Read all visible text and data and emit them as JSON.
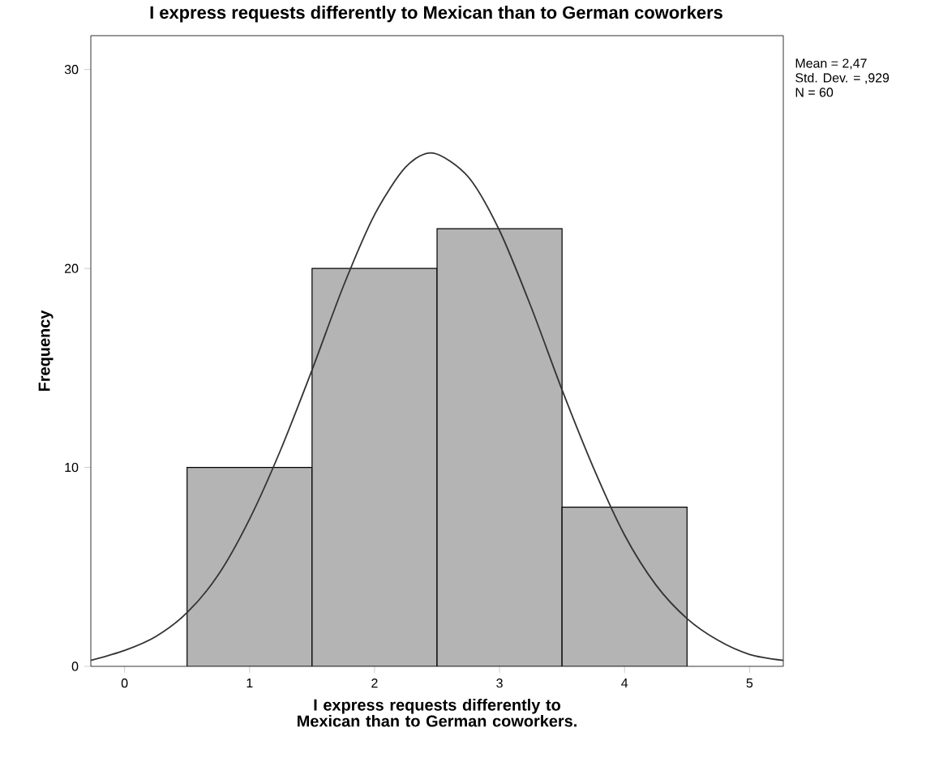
{
  "chart_data": {
    "type": "histogram",
    "title": "I express requests differently to Mexican than to German coworkers",
    "xlabel": "I express requests differently to Mexican than to German coworkers.",
    "ylabel": "Frequency",
    "bins": [
      0.5,
      1.5,
      2.5,
      3.5,
      4.5
    ],
    "series": [
      {
        "color": "#b4b4b4",
        "values": [
          10,
          20,
          22,
          8
        ]
      },
      {
        "type": "line",
        "color": "#333333",
        "x": [
          -0.27,
          0,
          0.25,
          0.5,
          0.75,
          1,
          1.25,
          1.5,
          1.75,
          2,
          2.25,
          2.47,
          2.75,
          3,
          3.25,
          3.5,
          3.75,
          4,
          4.25,
          4.5,
          4.75,
          5,
          5.27
        ],
        "values": [
          0.3,
          0.8,
          1.5,
          2.7,
          4.6,
          7.4,
          10.9,
          14.9,
          19.1,
          22.7,
          25.1,
          25.8,
          24.6,
          21.9,
          18.1,
          13.9,
          10.0,
          6.6,
          4.1,
          2.4,
          1.3,
          0.6,
          0.3
        ]
      }
    ],
    "xlim": [
      -0.27,
      5.27
    ],
    "ylim": [
      0,
      31.7
    ],
    "xticks": [
      0,
      1,
      2,
      3,
      4,
      5
    ],
    "yticks": [
      0,
      10,
      20,
      30
    ],
    "grid": false,
    "annotations": [
      "Mean = 2,47",
      "Std. Dev. = ,929",
      "N = 60"
    ]
  }
}
